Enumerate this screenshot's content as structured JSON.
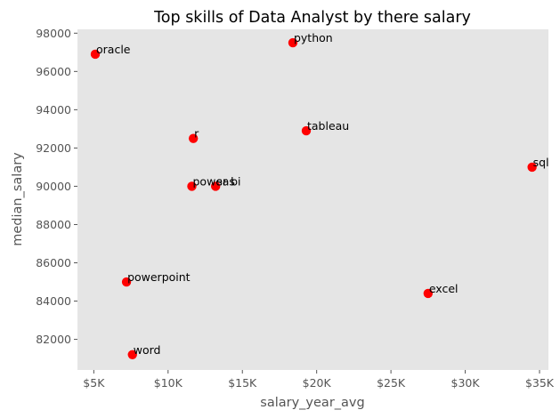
{
  "chart_data": {
    "type": "scatter",
    "title": "Top skills of Data Analyst by there salary",
    "xlabel": "salary_year_avg",
    "ylabel": "median_salary",
    "xlim": [
      3900,
      35600
    ],
    "ylim": [
      80400,
      98200
    ],
    "xticks": [
      5000,
      10000,
      15000,
      20000,
      25000,
      30000,
      35000
    ],
    "xtick_labels": [
      "$5K",
      "$10K",
      "$15K",
      "$20K",
      "$25K",
      "$30K",
      "$35K"
    ],
    "yticks": [
      82000,
      84000,
      86000,
      88000,
      90000,
      92000,
      94000,
      96000,
      98000
    ],
    "ytick_labels": [
      "82000",
      "84000",
      "86000",
      "88000",
      "90000",
      "92000",
      "94000",
      "96000",
      "98000"
    ],
    "grid": false,
    "legend": "none",
    "colors": {
      "background": "#e5e5e5",
      "point": "#ff0000"
    },
    "points": [
      {
        "label": "oracle",
        "x": 5100,
        "y": 96900
      },
      {
        "label": "python",
        "x": 18400,
        "y": 97500
      },
      {
        "label": "r",
        "x": 11700,
        "y": 92500
      },
      {
        "label": "tableau",
        "x": 19300,
        "y": 92900
      },
      {
        "label": "sql",
        "x": 34500,
        "y": 91000
      },
      {
        "label": "power bi",
        "x": 11600,
        "y": 90000
      },
      {
        "label": "sas",
        "x": 13200,
        "y": 90000
      },
      {
        "label": "powerpoint",
        "x": 7200,
        "y": 85000
      },
      {
        "label": "excel",
        "x": 27500,
        "y": 84400
      },
      {
        "label": "word",
        "x": 7600,
        "y": 81200
      }
    ]
  }
}
